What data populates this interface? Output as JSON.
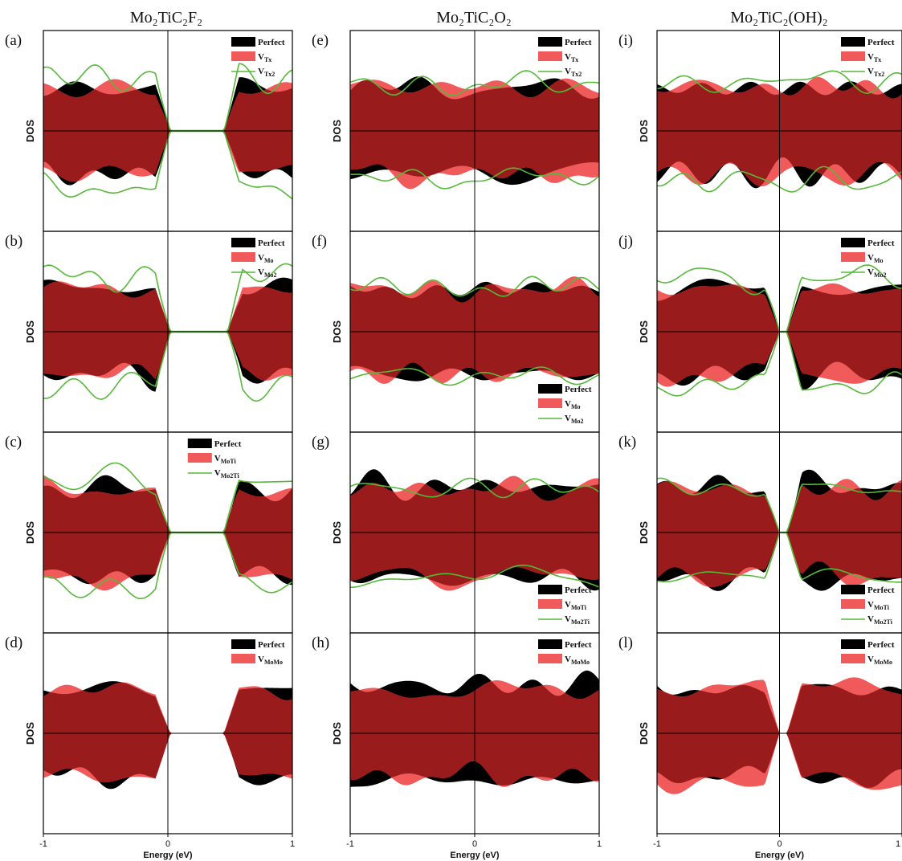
{
  "figure": {
    "columns": [
      {
        "title": "Mo₂TiC₂F₂"
      },
      {
        "title": "Mo₂TiC₂O₂"
      },
      {
        "title": "Mo₂TiC₂(OH)₂"
      }
    ],
    "colors": {
      "perfect": "#000000",
      "defect": "#f05a5a",
      "overlap": "#9a1b1b",
      "line": "#57b83a"
    }
  },
  "chart_data": [
    {
      "panel": "(a)",
      "type": "area",
      "title": "",
      "xlabel": "",
      "ylabel": "DOS",
      "xlim": [
        -1,
        1
      ],
      "gap": [
        0.02,
        0.45
      ],
      "legend_loc": "top-right",
      "series": [
        {
          "name": "Perfect",
          "kind": "fill",
          "seed": 1,
          "amp": 0.62
        },
        {
          "name": "V",
          "sub": "Tx",
          "kind": "fill",
          "seed": 2,
          "amp": 0.6
        },
        {
          "name": "V",
          "sub": "Tx2",
          "kind": "line",
          "seed": 3,
          "amp": 0.75
        }
      ],
      "xticks": []
    },
    {
      "panel": "(b)",
      "type": "area",
      "title": "",
      "xlabel": "",
      "ylabel": "DOS",
      "xlim": [
        -1,
        1
      ],
      "gap": [
        0.02,
        0.48
      ],
      "legend_loc": "top-right",
      "series": [
        {
          "name": "Perfect",
          "kind": "fill",
          "seed": 4,
          "amp": 0.6
        },
        {
          "name": "V",
          "sub": "Mo",
          "kind": "fill",
          "seed": 5,
          "amp": 0.6
        },
        {
          "name": "V",
          "sub": "Mo2",
          "kind": "line",
          "seed": 6,
          "amp": 0.78
        }
      ],
      "xticks": []
    },
    {
      "panel": "(c)",
      "type": "area",
      "title": "",
      "xlabel": "",
      "ylabel": "DOS",
      "xlim": [
        -1,
        1
      ],
      "gap": [
        0.02,
        0.45
      ],
      "legend_loc": "top-center",
      "series": [
        {
          "name": "Perfect",
          "kind": "fill",
          "seed": 7,
          "amp": 0.62
        },
        {
          "name": "V",
          "sub": "MoTi",
          "kind": "fill",
          "seed": 8,
          "amp": 0.62
        },
        {
          "name": "V",
          "sub": "Mo2Ti",
          "kind": "line",
          "seed": 9,
          "amp": 0.75
        }
      ],
      "xticks": []
    },
    {
      "panel": "(d)",
      "type": "area",
      "title": "",
      "xlabel": "Energy (eV)",
      "ylabel": "DOS",
      "xlim": [
        -1,
        1
      ],
      "gap": [
        0.02,
        0.45
      ],
      "legend_loc": "top-right",
      "series": [
        {
          "name": "Perfect",
          "kind": "fill",
          "seed": 10,
          "amp": 0.6
        },
        {
          "name": "V",
          "sub": "MoMo",
          "kind": "fill",
          "seed": 11,
          "amp": 0.62
        }
      ],
      "xticks": [
        "-1",
        "0",
        "1"
      ]
    },
    {
      "panel": "(e)",
      "type": "area",
      "title": "",
      "xlabel": "",
      "ylabel": "DOS",
      "xlim": [
        -1,
        1
      ],
      "gap": null,
      "legend_loc": "top-right",
      "series": [
        {
          "name": "Perfect",
          "kind": "fill",
          "seed": 12,
          "amp": 0.6
        },
        {
          "name": "V",
          "sub": "Tx",
          "kind": "fill",
          "seed": 13,
          "amp": 0.62
        },
        {
          "name": "V",
          "sub": "Tx2",
          "kind": "line",
          "seed": 14,
          "amp": 0.65
        }
      ],
      "xticks": []
    },
    {
      "panel": "(f)",
      "type": "area",
      "title": "",
      "xlabel": "",
      "ylabel": "DOS",
      "xlim": [
        -1,
        1
      ],
      "gap": null,
      "legend_loc": "bottom-right",
      "series": [
        {
          "name": "Perfect",
          "kind": "fill",
          "seed": 15,
          "amp": 0.6
        },
        {
          "name": "V",
          "sub": "Mo",
          "kind": "fill",
          "seed": 16,
          "amp": 0.6
        },
        {
          "name": "V",
          "sub": "Mo2",
          "kind": "line",
          "seed": 17,
          "amp": 0.62
        }
      ],
      "xticks": []
    },
    {
      "panel": "(g)",
      "type": "area",
      "title": "",
      "xlabel": "",
      "ylabel": "DOS",
      "xlim": [
        -1,
        1
      ],
      "gap": null,
      "legend_loc": "bottom-right",
      "series": [
        {
          "name": "Perfect",
          "kind": "fill",
          "seed": 18,
          "amp": 0.65
        },
        {
          "name": "V",
          "sub": "MoTi",
          "kind": "fill",
          "seed": 19,
          "amp": 0.62
        },
        {
          "name": "V",
          "sub": "Mo2Ti",
          "kind": "line",
          "seed": 20,
          "amp": 0.62
        }
      ],
      "xticks": []
    },
    {
      "panel": "(h)",
      "type": "area",
      "title": "",
      "xlabel": "Energy (eV)",
      "ylabel": "DOS",
      "xlim": [
        -1,
        1
      ],
      "gap": null,
      "legend_loc": "top-right",
      "series": [
        {
          "name": "Perfect",
          "kind": "fill",
          "seed": 21,
          "amp": 0.68
        },
        {
          "name": "V",
          "sub": "MoMo",
          "kind": "fill",
          "seed": 22,
          "amp": 0.6
        }
      ],
      "xticks": [
        "-1",
        "0",
        "1"
      ]
    },
    {
      "panel": "(i)",
      "type": "area",
      "title": "",
      "xlabel": "",
      "ylabel": "DOS",
      "xlim": [
        -1,
        1
      ],
      "gap": null,
      "legend_loc": "top-right",
      "series": [
        {
          "name": "Perfect",
          "kind": "fill",
          "seed": 23,
          "amp": 0.6
        },
        {
          "name": "V",
          "sub": "Tx",
          "kind": "fill",
          "seed": 24,
          "amp": 0.62
        },
        {
          "name": "V",
          "sub": "Tx2",
          "kind": "line",
          "seed": 25,
          "amp": 0.7
        }
      ],
      "xticks": []
    },
    {
      "panel": "(j)",
      "type": "area",
      "title": "",
      "xlabel": "",
      "ylabel": "DOS",
      "xlim": [
        -1,
        1
      ],
      "gap": [
        0.0,
        0.06
      ],
      "legend_loc": "top-right",
      "series": [
        {
          "name": "Perfect",
          "kind": "fill",
          "seed": 26,
          "amp": 0.62
        },
        {
          "name": "V",
          "sub": "Mo",
          "kind": "fill",
          "seed": 27,
          "amp": 0.6
        },
        {
          "name": "V",
          "sub": "Mo2",
          "kind": "line",
          "seed": 28,
          "amp": 0.75
        }
      ],
      "xticks": []
    },
    {
      "panel": "(k)",
      "type": "area",
      "title": "",
      "xlabel": "",
      "ylabel": "DOS",
      "xlim": [
        -1,
        1
      ],
      "gap": [
        0.0,
        0.06
      ],
      "legend_loc": "bottom-right",
      "series": [
        {
          "name": "Perfect",
          "kind": "fill",
          "seed": 29,
          "amp": 0.66
        },
        {
          "name": "V",
          "sub": "MoTi",
          "kind": "fill",
          "seed": 30,
          "amp": 0.62
        },
        {
          "name": "V",
          "sub": "Mo2Ti",
          "kind": "line",
          "seed": 31,
          "amp": 0.62
        }
      ],
      "xticks": []
    },
    {
      "panel": "(l)",
      "type": "area",
      "title": "",
      "xlabel": "Energy (eV)",
      "ylabel": "DOS",
      "xlim": [
        -1,
        1
      ],
      "gap": [
        0.0,
        0.06
      ],
      "legend_loc": "top-right",
      "series": [
        {
          "name": "Perfect",
          "kind": "fill",
          "seed": 32,
          "amp": 0.62
        },
        {
          "name": "V",
          "sub": "MoMo",
          "kind": "fill",
          "seed": 33,
          "amp": 0.68
        }
      ],
      "xticks": [
        "-1",
        "0",
        "1"
      ]
    }
  ]
}
